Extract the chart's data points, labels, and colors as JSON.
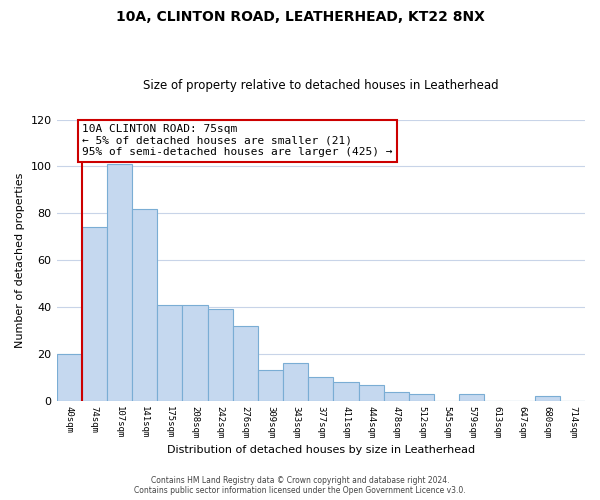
{
  "title": "10A, CLINTON ROAD, LEATHERHEAD, KT22 8NX",
  "subtitle": "Size of property relative to detached houses in Leatherhead",
  "xlabel": "Distribution of detached houses by size in Leatherhead",
  "ylabel": "Number of detached properties",
  "bar_labels": [
    "40sqm",
    "74sqm",
    "107sqm",
    "141sqm",
    "175sqm",
    "208sqm",
    "242sqm",
    "276sqm",
    "309sqm",
    "343sqm",
    "377sqm",
    "411sqm",
    "444sqm",
    "478sqm",
    "512sqm",
    "545sqm",
    "579sqm",
    "613sqm",
    "647sqm",
    "680sqm",
    "714sqm"
  ],
  "bar_values": [
    20,
    74,
    101,
    82,
    41,
    41,
    39,
    32,
    13,
    16,
    10,
    8,
    7,
    4,
    3,
    0,
    3,
    0,
    0,
    2,
    0
  ],
  "bar_color": "#c5d8ef",
  "bar_edge_color": "#7aadd4",
  "vline_x": 1.0,
  "vline_color": "#cc0000",
  "ylim": [
    0,
    120
  ],
  "yticks": [
    0,
    20,
    40,
    60,
    80,
    100,
    120
  ],
  "annotation_text": "10A CLINTON ROAD: 75sqm\n← 5% of detached houses are smaller (21)\n95% of semi-detached houses are larger (425) →",
  "annotation_box_color": "#ffffff",
  "annotation_box_edge": "#cc0000",
  "footer_line1": "Contains HM Land Registry data © Crown copyright and database right 2024.",
  "footer_line2": "Contains public sector information licensed under the Open Government Licence v3.0.",
  "background_color": "#ffffff",
  "grid_color": "#c8d4e8"
}
